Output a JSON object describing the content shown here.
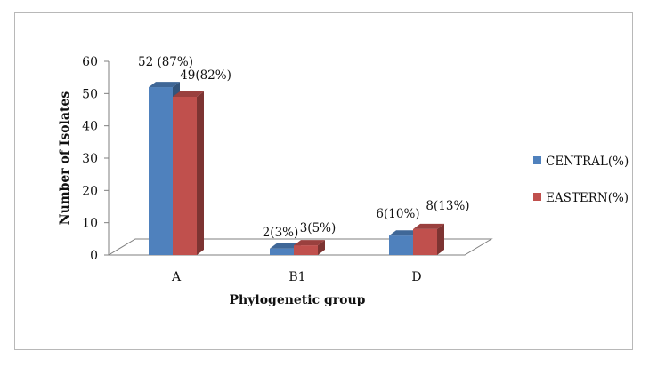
{
  "chart_data": {
    "type": "bar",
    "title": "",
    "xlabel": "Phylogenetic group",
    "ylabel": "Number of Isolates",
    "categories": [
      "A",
      "B1",
      "D"
    ],
    "ylim": [
      0,
      60
    ],
    "yticks": [
      "0",
      "10",
      "20",
      "30",
      "40",
      "50",
      "60"
    ],
    "series": [
      {
        "name": "CENTRAL(%)",
        "color": "#4f81bd",
        "values": [
          52,
          2,
          6
        ],
        "labels": [
          "52 (87%)",
          "2(3%)",
          "6(10%)"
        ]
      },
      {
        "name": "EASTERN(%)",
        "color": "#c0504d",
        "values": [
          49,
          3,
          8
        ],
        "labels": [
          "49(82%)",
          "3(5%)",
          "8(13%)"
        ]
      }
    ],
    "legend_position": "right",
    "grid": false,
    "style": "3d-column"
  }
}
